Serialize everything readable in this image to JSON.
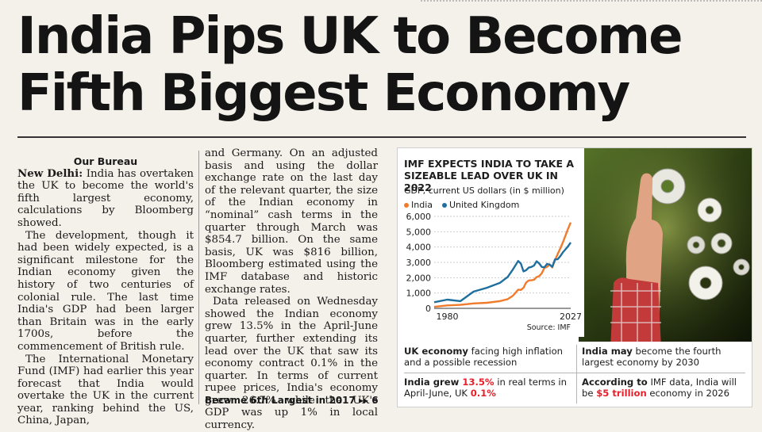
{
  "headline": {
    "line1": "India Pips UK to Become",
    "line2": "Fifth Biggest Economy"
  },
  "article": {
    "byline": "Our Bureau",
    "dateline": "New Delhi:",
    "p1": "India has overtaken the UK to become the world's fifth largest economy, calculations by Bloomberg showed.",
    "p2": "The development, though it had been widely expected, is a significant milestone for the Indian economy given the history of two centuries of colonial rule. The last time India's GDP had been larger than Britain was in the early 1700s, before the commencement of British rule.",
    "p3": "The International Monetary Fund (IMF) had earlier this year forecast that India would overtake the UK in the current year, ranking behind the US, China, Japan,",
    "p4": "and Germany. On an adjusted basis and using the dollar exchange rate on the last day of the relevant quarter, the size of the Indian economy in “nominal” cash terms in the quarter through March was $854.7 billion. On the same basis, UK was $816 billion, Bloomberg estimated using the IMF database and historic exchange rates.",
    "p5": "Data released on Wednesday showed the Indian economy grew 13.5% in the April-June quarter, further extending its lead over the UK that saw its economy contract 0.1% in the quarter. In terms of current rupee prices, India's economy grew 26.7% while the UK's GDP was up 1% in local currency.",
    "continued": "Became 6th Largest in 2017 ▸▸ 6"
  },
  "chart_data": {
    "type": "line",
    "title": "IMF EXPECTS INDIA TO TAKE A SIZEABLE LEAD OVER UK IN 2022",
    "subtitle": "GDP, current US dollars (in $ million)",
    "source": "Source: IMF",
    "ylim": [
      0,
      6000
    ],
    "yticks": [
      "6,000",
      "5,000",
      "4,000",
      "3,000",
      "2,000",
      "1,000",
      "0"
    ],
    "ytick_values": [
      6000,
      5000,
      4000,
      3000,
      2000,
      1000,
      0
    ],
    "xticks": [
      "1980",
      "2027"
    ],
    "xtick_values": [
      1980,
      2027
    ],
    "xlim": [
      1975,
      2027
    ],
    "grid": true,
    "series": [
      {
        "name": "India",
        "color": "#f07b2a",
        "x": [
          1975,
          1980,
          1985,
          1990,
          1995,
          2000,
          2003,
          2005,
          2007,
          2008,
          2009,
          2010,
          2011,
          2012,
          2013,
          2014,
          2015,
          2016,
          2017,
          2018,
          2019,
          2020,
          2021,
          2022,
          2023,
          2024,
          2025,
          2026,
          2027
        ],
        "y": [
          100,
          190,
          230,
          320,
          360,
          470,
          600,
          820,
          1220,
          1200,
          1340,
          1680,
          1820,
          1830,
          1860,
          2040,
          2100,
          2290,
          2650,
          2700,
          2870,
          2670,
          3150,
          3530,
          3900,
          4300,
          4750,
          5200,
          5600
        ]
      },
      {
        "name": "United Kingdom",
        "color": "#1f6f9e",
        "x": [
          1975,
          1980,
          1985,
          1990,
          1995,
          2000,
          2003,
          2005,
          2007,
          2008,
          2009,
          2010,
          2011,
          2012,
          2013,
          2014,
          2015,
          2016,
          2017,
          2018,
          2019,
          2020,
          2021,
          2022,
          2023,
          2024,
          2025,
          2026,
          2027
        ],
        "y": [
          400,
          570,
          470,
          1090,
          1340,
          1660,
          2050,
          2540,
          3090,
          2920,
          2410,
          2490,
          2660,
          2700,
          2790,
          3070,
          2930,
          2700,
          2680,
          2900,
          2850,
          2710,
          3190,
          3200,
          3400,
          3650,
          3850,
          4050,
          4300
        ]
      }
    ]
  },
  "facts": {
    "f1_bold": "UK economy",
    "f1_text": " facing high inflation and a possible recession",
    "f2_bold": "India may",
    "f2_text": " become the fourth largest economy by 2030",
    "f3_bold": "India grew ",
    "f3_hi1": "13.5%",
    "f3_text": " in real terms in April-June, UK ",
    "f3_hi2": "0.1%",
    "f4_bold": "According to",
    "f4_text": " IMF data, India will be ",
    "f4_hi": "$5 trillion",
    "f4_text2": " economy in 2026"
  },
  "colors": {
    "india": "#f07b2a",
    "uk": "#1f6f9e",
    "highlight": "#e5202a"
  }
}
